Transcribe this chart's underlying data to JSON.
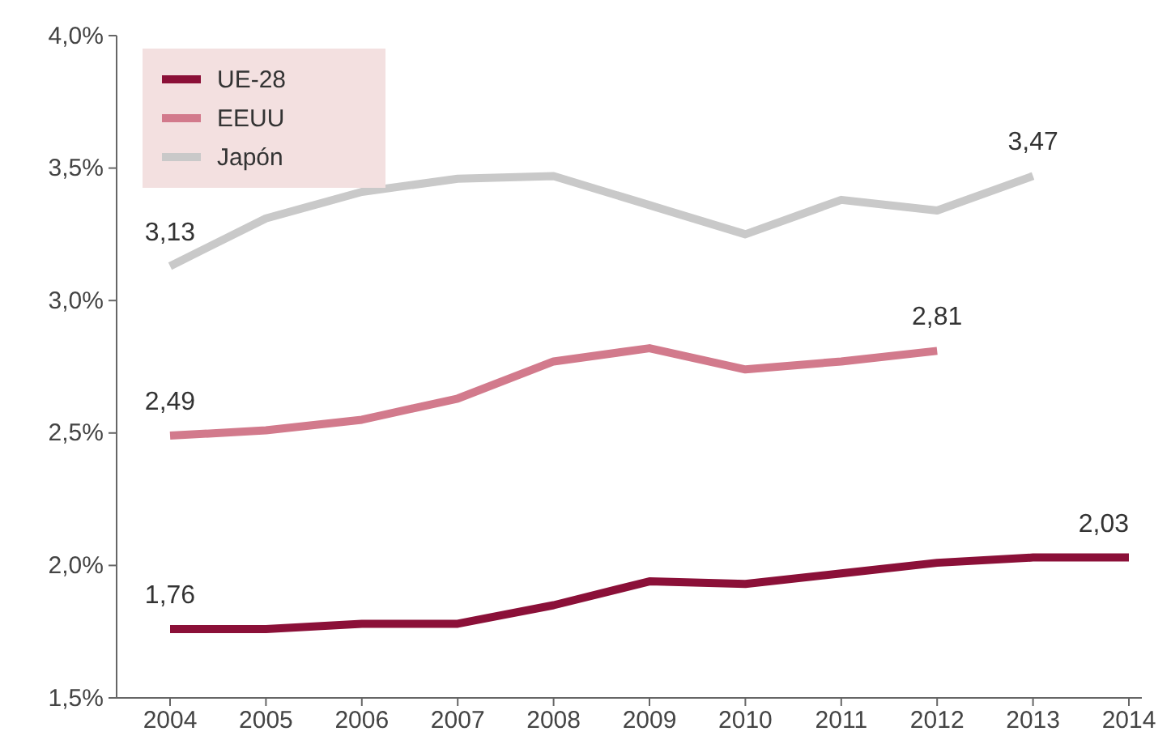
{
  "chart_data": {
    "type": "line",
    "categories": [
      "2004",
      "2005",
      "2006",
      "2007",
      "2008",
      "2009",
      "2010",
      "2011",
      "2012",
      "2013",
      "2014"
    ],
    "series": [
      {
        "name": "UE-28",
        "color": "#8b1038",
        "values": [
          1.76,
          1.76,
          1.78,
          1.78,
          1.85,
          1.94,
          1.93,
          1.97,
          2.01,
          2.03,
          2.03
        ]
      },
      {
        "name": "EEUU",
        "color": "#d27a8c",
        "values": [
          2.49,
          2.51,
          2.55,
          2.63,
          2.77,
          2.82,
          2.74,
          2.77,
          2.81,
          null,
          null
        ]
      },
      {
        "name": "Japón",
        "color": "#c9c9c9",
        "values": [
          3.13,
          3.31,
          3.41,
          3.46,
          3.47,
          3.36,
          3.25,
          3.38,
          3.34,
          3.47,
          null
        ]
      }
    ],
    "ylim": [
      1.5,
      4.0
    ],
    "yticks": [
      {
        "value": 1.5,
        "label": "1,5%"
      },
      {
        "value": 2.0,
        "label": "2,0%"
      },
      {
        "value": 2.5,
        "label": "2,5%"
      },
      {
        "value": 3.0,
        "label": "3,0%"
      },
      {
        "value": 3.5,
        "label": "3,5%"
      },
      {
        "value": 4.0,
        "label": "4,0%"
      }
    ],
    "annotations": [
      {
        "text": "1,76",
        "x": "2004",
        "y": 1.76
      },
      {
        "text": "2,03",
        "x": "2014",
        "y": 2.03
      },
      {
        "text": "2,49",
        "x": "2004",
        "y": 2.49
      },
      {
        "text": "2,81",
        "x": "2012",
        "y": 2.81
      },
      {
        "text": "3,13",
        "x": "2004",
        "y": 3.13
      },
      {
        "text": "3,47",
        "x": "2013",
        "y": 3.47
      }
    ],
    "legend": "top left",
    "grid": false,
    "marker": "none",
    "line_style": "solid"
  }
}
